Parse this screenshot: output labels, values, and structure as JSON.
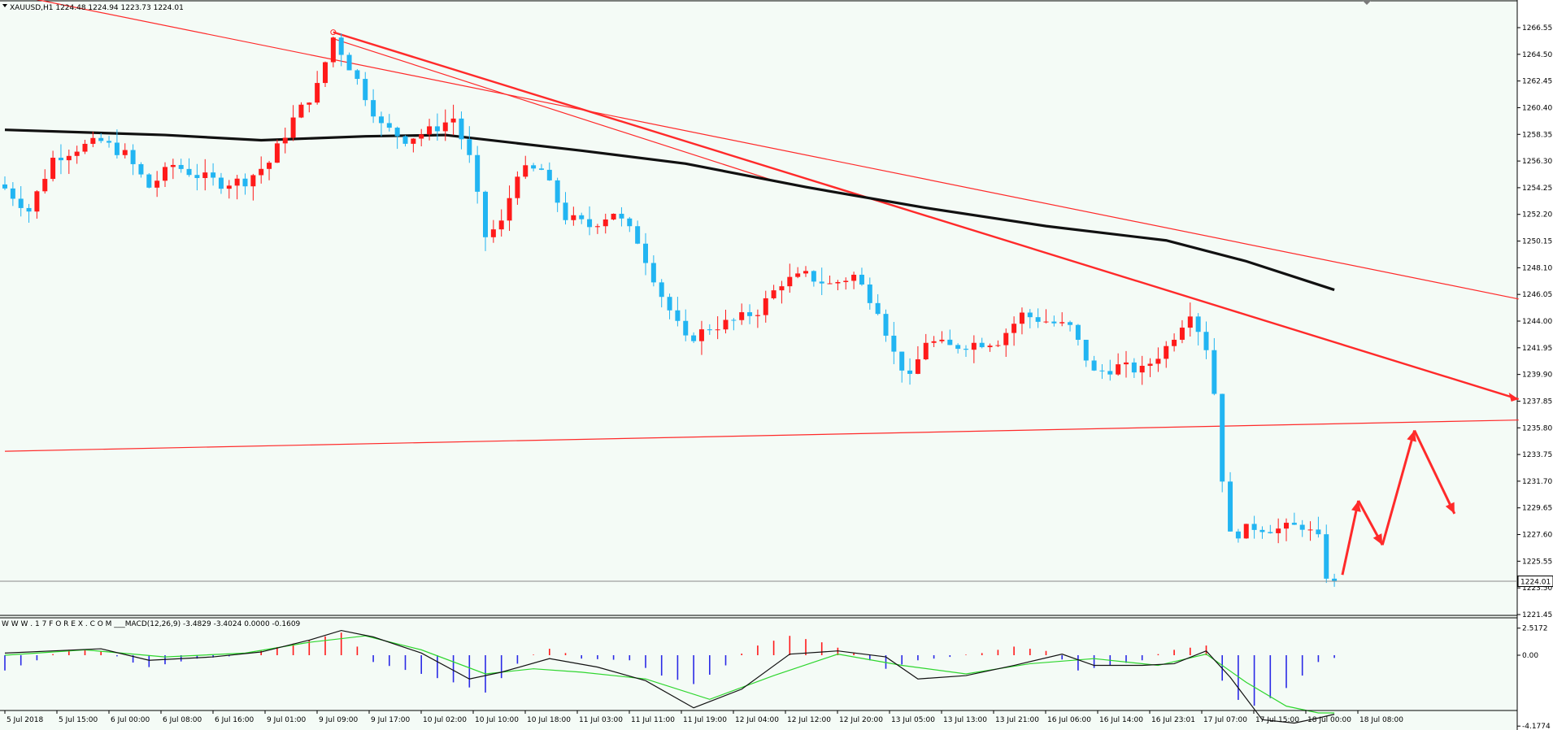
{
  "window": {
    "symbol_line": "XAUUSD,H1  1224.48 1224.94 1223.73 1224.01",
    "macd_line": "W W W . 1 7 F O R E X . C O M ___MACD(12,26,9) -3.4829 -3.4024 0.0000 -0.1609",
    "current_price_tag": "1224.01"
  },
  "colors": {
    "background": "#f4fbf6",
    "bull_candle": "#ff1a1a",
    "bear_candle": "#22b5f2",
    "ma_line": "#111111",
    "trendline": "#ff2a2a",
    "macd_line": "#111111",
    "signal_line": "#2ed62e",
    "hist_pos": "#ff1a1a",
    "hist_neg": "#2a2ae6"
  },
  "chart_data": [
    {
      "type": "candlestick",
      "title": "XAUUSD,H1",
      "price_axis_ticks": [
        "1266.55",
        "1264.50",
        "1262.45",
        "1260.40",
        "1258.35",
        "1256.30",
        "1254.25",
        "1252.20",
        "1250.15",
        "1248.10",
        "1246.05",
        "1244.00",
        "1241.95",
        "1239.90",
        "1237.85",
        "1235.80",
        "1233.75",
        "1231.70",
        "1229.65",
        "1227.60",
        "1225.55",
        "1223.50",
        "1221.45"
      ],
      "ylim": [
        1221.45,
        1266.55
      ],
      "time_axis_labels": [
        "5 Jul 2018",
        "5 Jul 15:00",
        "6 Jul 00:00",
        "6 Jul 08:00",
        "6 Jul 16:00",
        "9 Jul 01:00",
        "9 Jul 09:00",
        "9 Jul 17:00",
        "10 Jul 02:00",
        "10 Jul 10:00",
        "10 Jul 18:00",
        "11 Jul 03:00",
        "11 Jul 11:00",
        "11 Jul 19:00",
        "12 Jul 04:00",
        "12 Jul 12:00",
        "12 Jul 20:00",
        "13 Jul 05:00",
        "13 Jul 13:00",
        "13 Jul 21:00",
        "16 Jul 06:00",
        "16 Jul 14:00",
        "16 Jul 23:01",
        "17 Jul 07:00",
        "17 Jul 15:00",
        "18 Jul 00:00",
        "18 Jul 08:00"
      ],
      "last_price": 1224.01,
      "close_path": [
        {
          "bar": 0,
          "close": 1254.2
        },
        {
          "bar": 3,
          "close": 1252.5
        },
        {
          "bar": 6,
          "close": 1256.5
        },
        {
          "bar": 9,
          "close": 1257.3
        },
        {
          "bar": 12,
          "close": 1257.8
        },
        {
          "bar": 15,
          "close": 1256.8
        },
        {
          "bar": 18,
          "close": 1254.3
        },
        {
          "bar": 21,
          "close": 1256.0
        },
        {
          "bar": 24,
          "close": 1255.2
        },
        {
          "bar": 27,
          "close": 1254.6
        },
        {
          "bar": 30,
          "close": 1254.8
        },
        {
          "bar": 33,
          "close": 1256.2
        },
        {
          "bar": 36,
          "close": 1259.5
        },
        {
          "bar": 39,
          "close": 1262.0
        },
        {
          "bar": 41,
          "close": 1265.8
        },
        {
          "bar": 44,
          "close": 1262.5
        },
        {
          "bar": 47,
          "close": 1259.0
        },
        {
          "bar": 50,
          "close": 1258.0
        },
        {
          "bar": 53,
          "close": 1258.6
        },
        {
          "bar": 56,
          "close": 1259.6
        },
        {
          "bar": 58,
          "close": 1256.5
        },
        {
          "bar": 60,
          "close": 1250.5
        },
        {
          "bar": 62,
          "close": 1251.5
        },
        {
          "bar": 64,
          "close": 1255.5
        },
        {
          "bar": 67,
          "close": 1255.6
        },
        {
          "bar": 70,
          "close": 1252.0
        },
        {
          "bar": 73,
          "close": 1251.3
        },
        {
          "bar": 76,
          "close": 1252.4
        },
        {
          "bar": 79,
          "close": 1250.2
        },
        {
          "bar": 82,
          "close": 1246.0
        },
        {
          "bar": 85,
          "close": 1242.5
        },
        {
          "bar": 88,
          "close": 1243.5
        },
        {
          "bar": 91,
          "close": 1244.0
        },
        {
          "bar": 94,
          "close": 1244.8
        },
        {
          "bar": 97,
          "close": 1247.0
        },
        {
          "bar": 100,
          "close": 1247.5
        },
        {
          "bar": 103,
          "close": 1246.8
        },
        {
          "bar": 106,
          "close": 1247.5
        },
        {
          "bar": 109,
          "close": 1245.0
        },
        {
          "bar": 111,
          "close": 1241.5
        },
        {
          "bar": 113,
          "close": 1239.5
        },
        {
          "bar": 115,
          "close": 1242.5
        },
        {
          "bar": 118,
          "close": 1242.0
        },
        {
          "bar": 121,
          "close": 1242.3
        },
        {
          "bar": 124,
          "close": 1242.5
        },
        {
          "bar": 127,
          "close": 1244.5
        },
        {
          "bar": 130,
          "close": 1244.0
        },
        {
          "bar": 133,
          "close": 1243.5
        },
        {
          "bar": 136,
          "close": 1240.0
        },
        {
          "bar": 139,
          "close": 1240.5
        },
        {
          "bar": 142,
          "close": 1240.2
        },
        {
          "bar": 145,
          "close": 1242.0
        },
        {
          "bar": 148,
          "close": 1244.8
        },
        {
          "bar": 150,
          "close": 1242.0
        },
        {
          "bar": 151,
          "close": 1238.5
        },
        {
          "bar": 152,
          "close": 1232.0
        },
        {
          "bar": 153,
          "close": 1227.5
        },
        {
          "bar": 156,
          "close": 1228.2
        },
        {
          "bar": 159,
          "close": 1228.0
        },
        {
          "bar": 162,
          "close": 1228.3
        },
        {
          "bar": 164,
          "close": 1227.2
        },
        {
          "bar": 165,
          "close": 1224.5
        },
        {
          "bar": 166,
          "close": 1224.01
        }
      ],
      "series": [
        {
          "name": "MA",
          "points": [
            {
              "bar": 0,
              "value": 1258.7
            },
            {
              "bar": 20,
              "value": 1258.3
            },
            {
              "bar": 32,
              "value": 1257.9
            },
            {
              "bar": 45,
              "value": 1258.2
            },
            {
              "bar": 55,
              "value": 1258.3
            },
            {
              "bar": 72,
              "value": 1257.1
            },
            {
              "bar": 85,
              "value": 1256.1
            },
            {
              "bar": 100,
              "value": 1254.3
            },
            {
              "bar": 115,
              "value": 1252.7
            },
            {
              "bar": 130,
              "value": 1251.3
            },
            {
              "bar": 145,
              "value": 1250.2
            },
            {
              "bar": 155,
              "value": 1248.6
            },
            {
              "bar": 166,
              "value": 1246.4
            }
          ]
        }
      ],
      "trendlines": [
        {
          "from": {
            "bar": 0,
            "price": 1269.2
          },
          "to": {
            "bar": 189,
            "price": 1245.7
          }
        },
        {
          "from": {
            "bar": 41,
            "price": 1266.2
          },
          "to": {
            "bar": 189,
            "price": 1238.0
          }
        },
        {
          "from": {
            "bar": 0,
            "price": 1234.0
          },
          "to": {
            "bar": 189,
            "price": 1236.4
          }
        }
      ],
      "projection": [
        {
          "bar": 167,
          "price": 1224.5
        },
        {
          "bar": 169,
          "price": 1230.2
        },
        {
          "bar": 172,
          "price": 1226.8
        },
        {
          "bar": 176,
          "price": 1235.6
        },
        {
          "bar": 181,
          "price": 1229.2
        }
      ]
    },
    {
      "type": "macd",
      "title": "MACD(12,26,9)",
      "values": {
        "macd": -3.4829,
        "signal": -3.4024,
        "histogram": -0.1609
      },
      "axis_ticks": [
        "2.5172",
        "0.00",
        "-4.1774"
      ],
      "ylim": [
        -4.1774,
        2.5172
      ],
      "histogram": [
        {
          "bar": 0,
          "value": -0.9
        },
        {
          "bar": 4,
          "value": -0.3
        },
        {
          "bar": 8,
          "value": 0.5
        },
        {
          "bar": 12,
          "value": 0.4
        },
        {
          "bar": 15,
          "value": -0.3
        },
        {
          "bar": 18,
          "value": -0.7
        },
        {
          "bar": 24,
          "value": -0.2
        },
        {
          "bar": 30,
          "value": 0.0
        },
        {
          "bar": 33,
          "value": 0.6
        },
        {
          "bar": 38,
          "value": 1.4
        },
        {
          "bar": 42,
          "value": 2.1
        },
        {
          "bar": 44,
          "value": 0.8
        },
        {
          "bar": 46,
          "value": -0.4
        },
        {
          "bar": 52,
          "value": -1.1
        },
        {
          "bar": 56,
          "value": -1.6
        },
        {
          "bar": 60,
          "value": -2.2
        },
        {
          "bar": 64,
          "value": -0.5
        },
        {
          "bar": 68,
          "value": 0.6
        },
        {
          "bar": 72,
          "value": -0.2
        },
        {
          "bar": 78,
          "value": -0.3
        },
        {
          "bar": 82,
          "value": -1.2
        },
        {
          "bar": 86,
          "value": -1.7
        },
        {
          "bar": 90,
          "value": -0.6
        },
        {
          "bar": 94,
          "value": 0.9
        },
        {
          "bar": 98,
          "value": 1.8
        },
        {
          "bar": 102,
          "value": 1.2
        },
        {
          "bar": 106,
          "value": 0.2
        },
        {
          "bar": 110,
          "value": -0.8
        },
        {
          "bar": 114,
          "value": -0.3
        },
        {
          "bar": 118,
          "value": -0.1
        },
        {
          "bar": 122,
          "value": 0.2
        },
        {
          "bar": 126,
          "value": 0.8
        },
        {
          "bar": 130,
          "value": 0.4
        },
        {
          "bar": 134,
          "value": -0.9
        },
        {
          "bar": 138,
          "value": -0.6
        },
        {
          "bar": 142,
          "value": -0.3
        },
        {
          "bar": 146,
          "value": 0.5
        },
        {
          "bar": 150,
          "value": 0.9
        },
        {
          "bar": 152,
          "value": -1.5
        },
        {
          "bar": 155,
          "value": -3.2
        },
        {
          "bar": 159,
          "value": -2.3
        },
        {
          "bar": 162,
          "value": -1.2
        },
        {
          "bar": 164,
          "value": -0.4
        },
        {
          "bar": 166,
          "value": -0.16
        }
      ],
      "series": [
        {
          "name": "MACD",
          "points": [
            {
              "bar": 0,
              "value": 0.2
            },
            {
              "bar": 6,
              "value": 0.4
            },
            {
              "bar": 12,
              "value": 0.6
            },
            {
              "bar": 18,
              "value": -0.3
            },
            {
              "bar": 26,
              "value": -0.1
            },
            {
              "bar": 32,
              "value": 0.3
            },
            {
              "bar": 38,
              "value": 1.4
            },
            {
              "bar": 42,
              "value": 2.3
            },
            {
              "bar": 46,
              "value": 1.7
            },
            {
              "bar": 52,
              "value": 0.2
            },
            {
              "bar": 58,
              "value": -1.4
            },
            {
              "bar": 62,
              "value": -1.0
            },
            {
              "bar": 68,
              "value": -0.2
            },
            {
              "bar": 74,
              "value": -0.7
            },
            {
              "bar": 80,
              "value": -1.5
            },
            {
              "bar": 86,
              "value": -3.1
            },
            {
              "bar": 92,
              "value": -2.0
            },
            {
              "bar": 98,
              "value": 0.1
            },
            {
              "bar": 104,
              "value": 0.4
            },
            {
              "bar": 110,
              "value": -0.1
            },
            {
              "bar": 114,
              "value": -1.4
            },
            {
              "bar": 120,
              "value": -1.2
            },
            {
              "bar": 126,
              "value": -0.6
            },
            {
              "bar": 132,
              "value": 0.1
            },
            {
              "bar": 136,
              "value": -0.6
            },
            {
              "bar": 142,
              "value": -0.6
            },
            {
              "bar": 146,
              "value": -0.5
            },
            {
              "bar": 150,
              "value": 0.4
            },
            {
              "bar": 153,
              "value": -1.3
            },
            {
              "bar": 157,
              "value": -3.8
            },
            {
              "bar": 161,
              "value": -4.0
            },
            {
              "bar": 164,
              "value": -3.7
            },
            {
              "bar": 166,
              "value": -3.48
            }
          ]
        },
        {
          "name": "Signal",
          "points": [
            {
              "bar": 0,
              "value": 0.0
            },
            {
              "bar": 10,
              "value": 0.5
            },
            {
              "bar": 20,
              "value": -0.1
            },
            {
              "bar": 30,
              "value": 0.2
            },
            {
              "bar": 38,
              "value": 1.2
            },
            {
              "bar": 45,
              "value": 1.8
            },
            {
              "bar": 52,
              "value": 0.5
            },
            {
              "bar": 60,
              "value": -1.1
            },
            {
              "bar": 66,
              "value": -0.8
            },
            {
              "bar": 72,
              "value": -1.0
            },
            {
              "bar": 80,
              "value": -1.4
            },
            {
              "bar": 88,
              "value": -2.6
            },
            {
              "bar": 96,
              "value": -1.2
            },
            {
              "bar": 104,
              "value": 0.1
            },
            {
              "bar": 112,
              "value": -0.6
            },
            {
              "bar": 120,
              "value": -1.1
            },
            {
              "bar": 128,
              "value": -0.5
            },
            {
              "bar": 136,
              "value": -0.2
            },
            {
              "bar": 144,
              "value": -0.6
            },
            {
              "bar": 150,
              "value": 0.1
            },
            {
              "bar": 155,
              "value": -1.6
            },
            {
              "bar": 160,
              "value": -3.0
            },
            {
              "bar": 164,
              "value": -3.4
            },
            {
              "bar": 166,
              "value": -3.4
            }
          ]
        }
      ]
    }
  ]
}
